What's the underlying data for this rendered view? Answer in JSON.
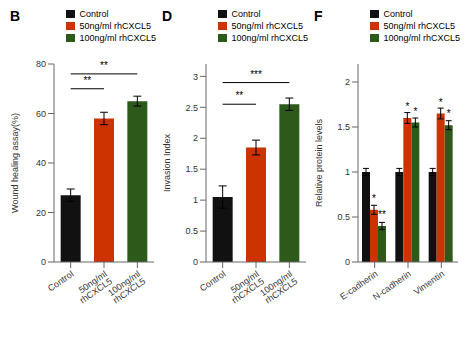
{
  "chart_data": [
    {
      "type": "bar",
      "title": "B",
      "ylabel": "Wound healing assay(%)",
      "categories": [
        "Control",
        "50ng/ml rhCXCL5",
        "100ng/ml rhCXCL5"
      ],
      "values": [
        27,
        58,
        65
      ],
      "errors": [
        2.5,
        2.5,
        2.0
      ],
      "colors": [
        "#111111",
        "#cc3300",
        "#2d5a1b"
      ],
      "ylim": [
        0,
        80
      ],
      "yticks": [
        0,
        20,
        40,
        60,
        80
      ],
      "annotations": [
        {
          "text": "**",
          "from": "Control",
          "to": "50ng/ml rhCXCL5",
          "y": 70
        },
        {
          "text": "**",
          "from": "Control",
          "to": "100ng/ml rhCXCL5",
          "y": 76
        }
      ],
      "grid": false,
      "legend": "upper right"
    },
    {
      "type": "bar",
      "title": "D",
      "ylabel": "Invasion Index",
      "categories": [
        "Control",
        "50ng/ml rhCXCL5",
        "100ng/ml rhCXCL5"
      ],
      "values": [
        1.05,
        1.85,
        2.55
      ],
      "errors": [
        0.18,
        0.12,
        0.1
      ],
      "colors": [
        "#111111",
        "#cc3300",
        "#2d5a1b"
      ],
      "ylim": [
        0.0,
        3.2
      ],
      "yticks": [
        0,
        0.5,
        1,
        1.5,
        2,
        2.5,
        3
      ],
      "annotations": [
        {
          "text": "**",
          "from": "Control",
          "to": "50ng/ml rhCXCL5",
          "y": 2.55
        },
        {
          "text": "***",
          "from": "Control",
          "to": "100ng/ml rhCXCL5",
          "y": 2.9
        }
      ],
      "grid": false,
      "legend": "upper right"
    },
    {
      "type": "bar",
      "title": "F",
      "ylabel": "Relative protein levels",
      "categories": [
        "E-cadherin",
        "N-cadherin",
        "Vimentin"
      ],
      "series": [
        {
          "name": "Control",
          "color": "#111111",
          "values": [
            1.0,
            1.0,
            1.0
          ],
          "errors": [
            0.04,
            0.04,
            0.04
          ]
        },
        {
          "name": "50ng/ml rhCXCL5",
          "color": "#cc3300",
          "values": [
            0.58,
            1.6,
            1.65
          ],
          "errors": [
            0.05,
            0.06,
            0.06
          ],
          "annotations": [
            "*",
            "*",
            "*"
          ]
        },
        {
          "name": "100ng/ml rhCXCL5",
          "color": "#2d5a1b",
          "values": [
            0.4,
            1.55,
            1.52
          ],
          "errors": [
            0.04,
            0.05,
            0.05
          ],
          "annotations": [
            "**",
            "*",
            "*"
          ]
        }
      ],
      "ylim": [
        0.0,
        2.2
      ],
      "yticks": [
        0,
        0.5,
        1,
        1.5,
        2
      ],
      "grid": false,
      "legend": "upper right"
    }
  ]
}
